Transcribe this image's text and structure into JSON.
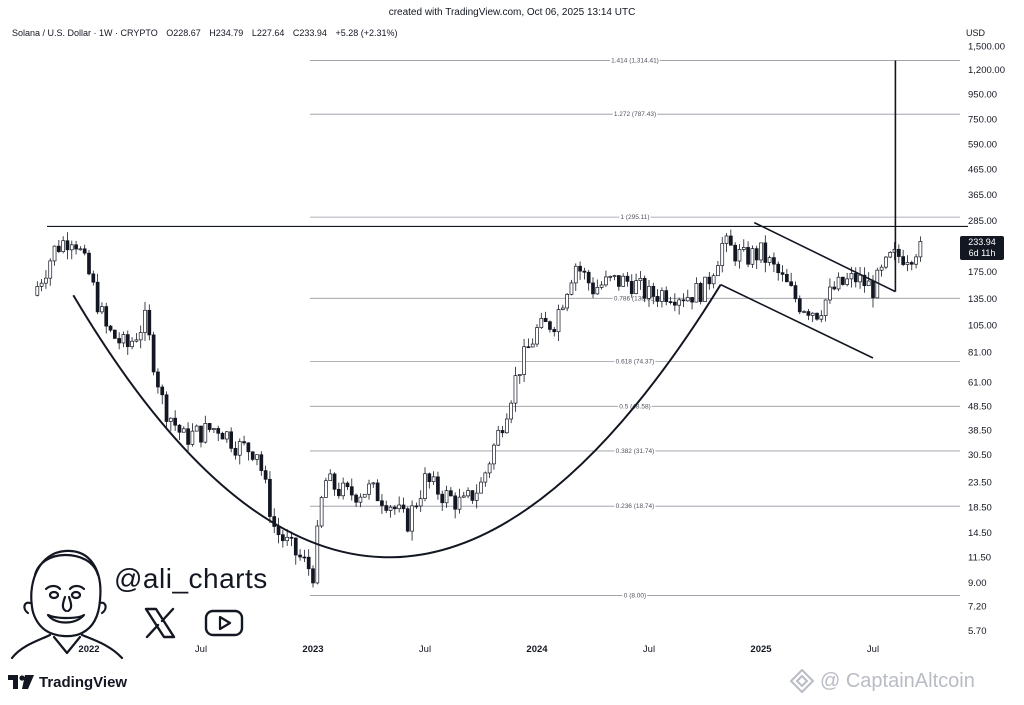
{
  "topline": "created with TradingView.com, Oct 06, 2025 13:14 UTC",
  "header": {
    "symbol": "Solana / U.S. Dollar · 1W · CRYPTO",
    "open": "O228.67",
    "high": "H234.79",
    "low": "L227.64",
    "close": "C233.94",
    "change": "+5.28 (+2.31%)"
  },
  "currency": "USD",
  "last_price": {
    "value": "233.94",
    "countdown": "6d 11h"
  },
  "watermark": {
    "handle": "@ali_charts",
    "x_icon": "x-logo-icon",
    "yt_icon": "youtube-icon"
  },
  "branding": {
    "tradingview": "TradingView",
    "captainaltcoin": "CaptainAltcoin"
  },
  "colors": {
    "candle_up": "#ffffff",
    "candle_down": "#131722",
    "line": "#131722",
    "fib_line": "#9598a1"
  },
  "chart_data": {
    "type": "candlestick",
    "title": "Solana / U.S. Dollar · 1W · CRYPTO",
    "x_labels": [
      "2022",
      "Jul",
      "2023",
      "Jul",
      "2024",
      "Jul",
      "2025",
      "Jul"
    ],
    "y_scale": "log",
    "y_ticks": [
      "1,500.00",
      "1,200.00",
      "950.00",
      "750.00",
      "590.00",
      "465.00",
      "365.00",
      "285.00",
      "175.00",
      "135.00",
      "105.00",
      "81.00",
      "61.00",
      "48.50",
      "38.50",
      "30.50",
      "23.50",
      "18.50",
      "14.50",
      "11.50",
      "9.00",
      "7.20",
      "5.70"
    ],
    "fib_levels": [
      {
        "ratio": 1.414,
        "price": 1314.41,
        "label": "1.414 (1,314.41)"
      },
      {
        "ratio": 1.272,
        "price": 787.43,
        "label": "1.272 (787.43)"
      },
      {
        "ratio": 1,
        "price": 295.11,
        "label": "1 (295.11)"
      },
      {
        "ratio": 0.786,
        "price": 136.05,
        "label": "0.786 (136.05)"
      },
      {
        "ratio": 0.618,
        "price": 74.37,
        "label": "0.618 (74.37)"
      },
      {
        "ratio": 0.5,
        "price": 48.58,
        "label": "0.5 (48.58)"
      },
      {
        "ratio": 0.382,
        "price": 31.74,
        "label": "0.382 (31.74)"
      },
      {
        "ratio": 0.236,
        "price": 18.74,
        "label": "0.236 (18.74)"
      },
      {
        "ratio": 0,
        "price": 8.0,
        "label": "0 (8.00)"
      }
    ],
    "last_close": 233.94,
    "annotations": [
      "cup-and-handle pattern",
      "resistance line",
      "descending handle channel",
      "breakout target arrow"
    ],
    "weekly_closes_approx": [
      [
        2021.75,
        140
      ],
      [
        2021.85,
        220
      ],
      [
        2021.93,
        250
      ],
      [
        2022.0,
        170
      ],
      [
        2022.08,
        100
      ],
      [
        2022.17,
        85
      ],
      [
        2022.25,
        110
      ],
      [
        2022.33,
        50
      ],
      [
        2022.42,
        36
      ],
      [
        2022.5,
        38
      ],
      [
        2022.58,
        40
      ],
      [
        2022.67,
        33
      ],
      [
        2022.75,
        32
      ],
      [
        2022.83,
        15
      ],
      [
        2022.92,
        12
      ],
      [
        2023.0,
        10
      ],
      [
        2023.05,
        24
      ],
      [
        2023.15,
        21
      ],
      [
        2023.25,
        22
      ],
      [
        2023.33,
        20
      ],
      [
        2023.42,
        16
      ],
      [
        2023.5,
        24
      ],
      [
        2023.58,
        21
      ],
      [
        2023.67,
        19
      ],
      [
        2023.75,
        23
      ],
      [
        2023.83,
        38
      ],
      [
        2023.92,
        70
      ],
      [
        2024.0,
        100
      ],
      [
        2024.08,
        110
      ],
      [
        2024.17,
        190
      ],
      [
        2024.25,
        150
      ],
      [
        2024.33,
        160
      ],
      [
        2024.42,
        160
      ],
      [
        2024.5,
        140
      ],
      [
        2024.58,
        145
      ],
      [
        2024.67,
        140
      ],
      [
        2024.75,
        150
      ],
      [
        2024.83,
        230
      ],
      [
        2024.92,
        200
      ],
      [
        2025.0,
        210
      ],
      [
        2025.08,
        170
      ],
      [
        2025.17,
        130
      ],
      [
        2025.25,
        120
      ],
      [
        2025.33,
        150
      ],
      [
        2025.42,
        165
      ],
      [
        2025.5,
        150
      ],
      [
        2025.58,
        200
      ],
      [
        2025.67,
        210
      ],
      [
        2025.72,
        233.94
      ]
    ]
  }
}
